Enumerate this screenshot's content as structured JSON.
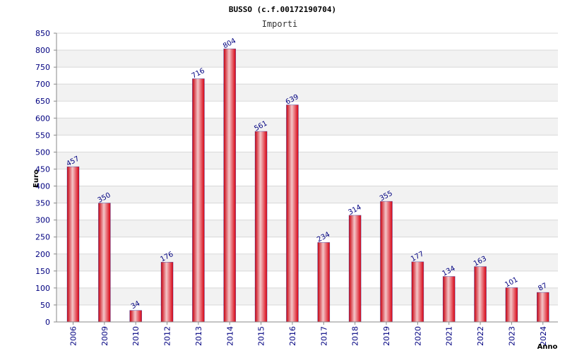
{
  "chart_data": {
    "type": "bar",
    "title": "BUSSO (c.f.00172190704)",
    "subtitle": "Importi",
    "ylabel": "Euro",
    "xlabel": "Anno",
    "ylim": [
      0,
      850
    ],
    "ytick_step": 50,
    "grid": true,
    "categories": [
      "2006",
      "2009",
      "2010",
      "2012",
      "2013",
      "2014",
      "2015",
      "2016",
      "2017",
      "2018",
      "2019",
      "2020",
      "2021",
      "2022",
      "2023",
      "2024"
    ],
    "values": [
      457,
      350,
      34,
      176,
      716,
      804,
      561,
      639,
      234,
      314,
      355,
      177,
      134,
      163,
      101,
      87
    ],
    "colors": {
      "bar": "#e8101e",
      "bar_highlight": "#f4c6c8",
      "bar_edge": "#2030a0",
      "label": "#000080",
      "band": "#f2f2f2",
      "grid": "#d8d8d8"
    }
  }
}
